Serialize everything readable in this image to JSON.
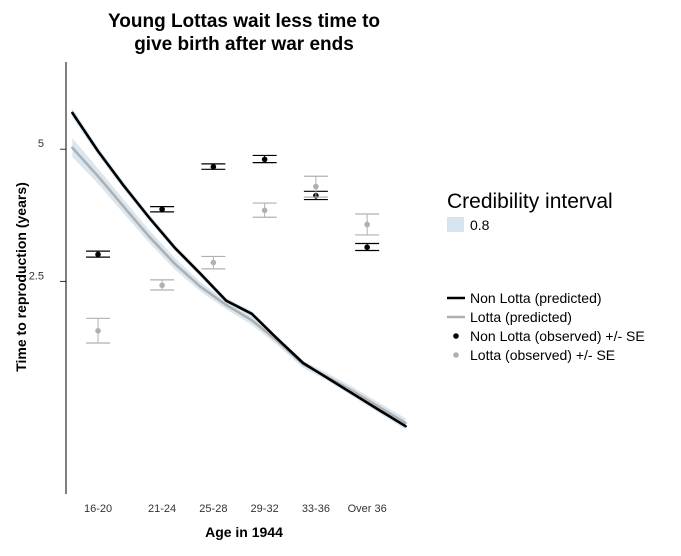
{
  "chart_data": {
    "type": "line",
    "title": [
      "Young Lottas wait less time to",
      "give birth after war ends"
    ],
    "xlabel": "Age in 1944",
    "ylabel": "Time to reproduction (years)",
    "categories": [
      "16-20",
      "21-24",
      "25-28",
      "29-32",
      "33-36",
      "Over 36"
    ],
    "x_range": [
      15.5,
      42.5
    ],
    "y_scale": "log",
    "y_range": [
      0.82,
      7.9
    ],
    "y_ticks": [
      {
        "value": 2.5,
        "label": "2.5"
      },
      {
        "value": 5,
        "label": "5"
      }
    ],
    "grid": false,
    "legend": {
      "placement": "right",
      "interval_title": "Credibility interval",
      "interval_entries": [
        {
          "label": "0.8",
          "color": "#d6e4f0"
        }
      ],
      "entries": [
        {
          "label": "Non Lotta (predicted)",
          "kind": "line",
          "color": "#000000"
        },
        {
          "label": "Lotta (predicted)",
          "kind": "line",
          "color": "#b0b0b0"
        },
        {
          "label": "Non Lotta (observed) +/- SE",
          "kind": "point",
          "color": "#000000"
        },
        {
          "label": "Lotta (observed) +/- SE",
          "kind": "point",
          "color": "#b0b0b0"
        }
      ]
    },
    "predicted": [
      {
        "name": "Non Lotta (predicted)",
        "color": "#000000",
        "x": [
          16,
          18,
          20,
          22,
          24,
          26,
          28,
          30,
          32,
          34,
          36,
          38,
          40,
          42
        ],
        "y": [
          6.05,
          4.95,
          4.13,
          3.49,
          2.98,
          2.6,
          2.26,
          2.11,
          1.85,
          1.63,
          1.5,
          1.38,
          1.27,
          1.17
        ],
        "lower": [
          5.9,
          4.85,
          4.05,
          3.43,
          2.93,
          2.56,
          2.23,
          2.08,
          1.83,
          1.61,
          1.48,
          1.36,
          1.25,
          1.15
        ],
        "upper": [
          6.2,
          5.05,
          4.21,
          3.55,
          3.03,
          2.64,
          2.29,
          2.14,
          1.87,
          1.65,
          1.52,
          1.4,
          1.29,
          1.19
        ]
      },
      {
        "name": "Lotta (predicted)",
        "color": "#b0b0b0",
        "x": [
          16,
          18,
          20,
          22,
          24,
          26,
          28,
          30,
          32,
          34,
          36,
          38,
          40,
          42
        ],
        "y": [
          5.04,
          4.34,
          3.7,
          3.16,
          2.74,
          2.43,
          2.21,
          2.04,
          1.83,
          1.62,
          1.51,
          1.4,
          1.29,
          1.19
        ],
        "lower": [
          4.8,
          4.17,
          3.57,
          3.06,
          2.66,
          2.37,
          2.16,
          1.99,
          1.79,
          1.59,
          1.48,
          1.37,
          1.26,
          1.16
        ],
        "upper": [
          5.3,
          4.52,
          3.84,
          3.27,
          2.83,
          2.49,
          2.26,
          2.09,
          1.87,
          1.65,
          1.54,
          1.43,
          1.32,
          1.22
        ]
      }
    ],
    "observed": [
      {
        "name": "Non Lotta (observed) +/- SE",
        "color": "#000000",
        "x": [
          18,
          23,
          27,
          31,
          35,
          39
        ],
        "y": [
          2.88,
          3.65,
          4.56,
          4.74,
          3.92,
          2.99
        ],
        "lower": [
          2.84,
          3.6,
          4.5,
          4.66,
          3.84,
          2.94
        ],
        "upper": [
          2.93,
          3.7,
          4.63,
          4.84,
          4.01,
          3.05
        ]
      },
      {
        "name": "Lotta (observed) +/- SE",
        "color": "#b0b0b0",
        "x": [
          18,
          23,
          27,
          31,
          35,
          39
        ],
        "y": [
          1.93,
          2.45,
          2.76,
          3.63,
          4.11,
          3.37
        ],
        "lower": [
          1.81,
          2.39,
          2.67,
          3.5,
          3.89,
          3.19
        ],
        "upper": [
          2.06,
          2.52,
          2.85,
          3.77,
          4.34,
          3.56
        ]
      }
    ]
  }
}
